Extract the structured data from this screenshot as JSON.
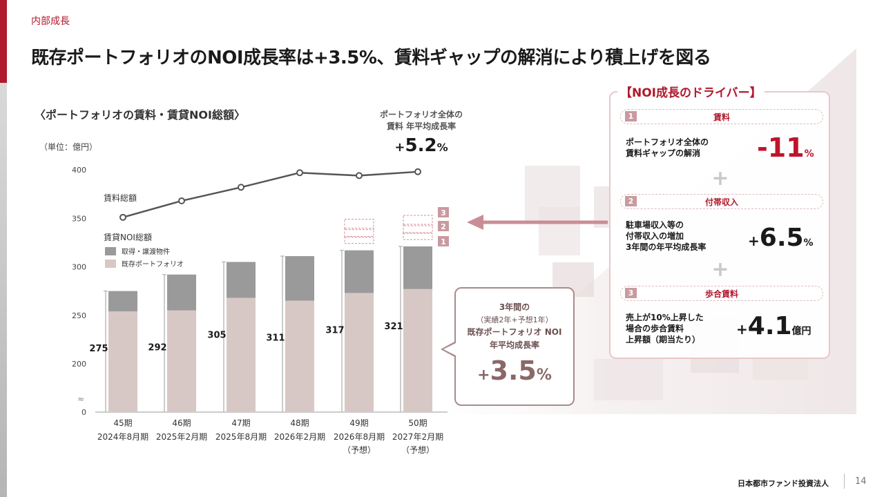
{
  "section_label": "内部成長",
  "page_title": "既存ポートフォリオのNOI成長率は+3.5%、賃料ギャップの解消により積上げを図る",
  "chart_heading": "〈ポートフォリオの賃料・賃貸NOI総額〉",
  "unit_label": "（単位：億円）",
  "growth_caption": [
    "ポートフォリオ全体の",
    "賃料 年平均成長率"
  ],
  "growth_value": {
    "sign": "+",
    "num": "5.2",
    "pct": "%"
  },
  "callout": {
    "line1": "3年間の",
    "line2": "（実績2年+予想1年）",
    "line3": "既存ポートフォリオ NOI",
    "line4": "年平均成長率",
    "value": {
      "sign": "+",
      "num": "3.5",
      "pct": "%"
    }
  },
  "drivers": {
    "title": "【NOI成長のドライバー】",
    "items": [
      {
        "badge": "1",
        "label": "賃料",
        "text": [
          "ポートフォリオ全体の",
          "賃料ギャップの解消"
        ],
        "value": {
          "num": "-11",
          "unit": "%"
        },
        "color": "#c0142c"
      },
      {
        "badge": "2",
        "label": "付帯収入",
        "text": [
          "駐車場収入等の",
          "付帯収入の増加",
          "3年間の年平均成長率"
        ],
        "value": {
          "sign": "+",
          "num": "6.5",
          "unit": "%"
        },
        "color": "#1a1a1a"
      },
      {
        "badge": "3",
        "label": "歩合賃料",
        "text": [
          "売上が10%上昇した",
          "場合の歩合賃料",
          "上昇額（期当たり）"
        ],
        "value": {
          "sign": "+",
          "num": "4.1",
          "unit": "億円"
        },
        "color": "#1a1a1a"
      }
    ],
    "plus": "+"
  },
  "footer": {
    "company": "日本都市ファンド投資法人",
    "page": "14"
  },
  "colors": {
    "accent": "#b0192d",
    "existing": "#d8c8c5",
    "acquired": "#9a9a9a",
    "line": "#555555"
  },
  "chart_data": {
    "type": "bar",
    "categories": [
      "45期",
      "46期",
      "47期",
      "48期",
      "49期",
      "50期"
    ],
    "category_sublabels": [
      [
        "2024年8月期"
      ],
      [
        "2025年2月期"
      ],
      [
        "2025年8月期"
      ],
      [
        "2026年2月期"
      ],
      [
        "2026年8月期",
        "（予想）"
      ],
      [
        "2027年2月期",
        "（予想）"
      ]
    ],
    "series": [
      {
        "name": "既存ポートフォリオ",
        "values": [
          254,
          255,
          268,
          265,
          273,
          277
        ]
      },
      {
        "name": "取得・譲渡物件",
        "values": [
          21,
          37,
          37,
          46,
          44,
          44
        ]
      }
    ],
    "totals": [
      275,
      292,
      305,
      311,
      317,
      321
    ],
    "line_series": {
      "name": "賃料総額",
      "values": [
        351,
        368,
        382,
        397,
        394,
        398
      ]
    },
    "bar_series_label": "賃貸NOI総額",
    "forecast_stack_badges": [
      "3",
      "2",
      "1"
    ],
    "y_ticks": [
      "400",
      "350",
      "300",
      "250",
      "200",
      "0"
    ],
    "y_axis_break": "≈",
    "ylim": [
      0,
      400
    ]
  }
}
